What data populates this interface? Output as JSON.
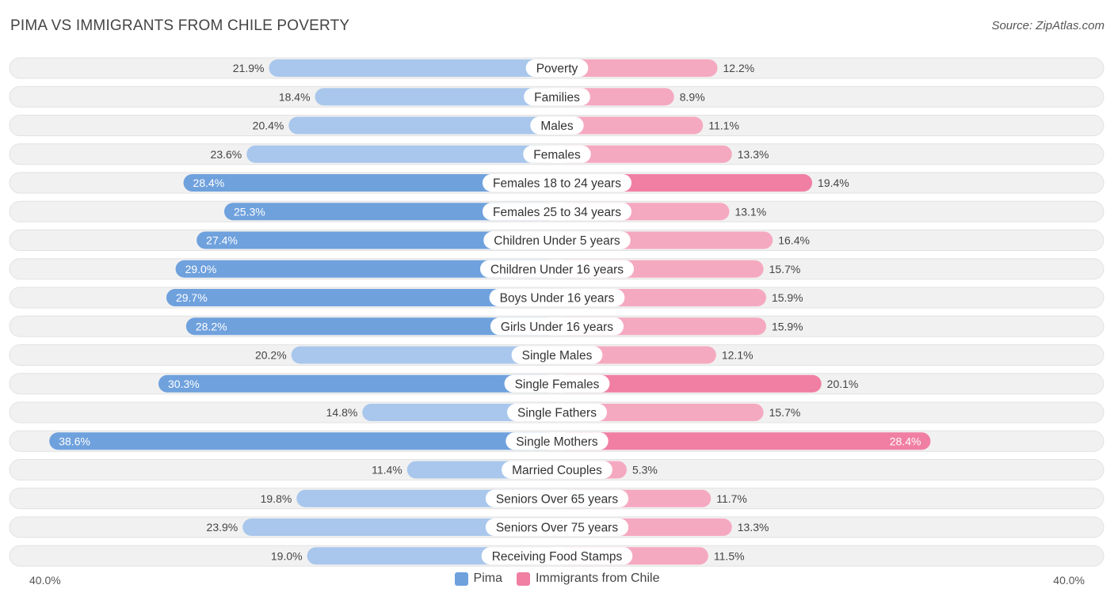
{
  "header": {
    "title": "PIMA VS IMMIGRANTS FROM CHILE POVERTY",
    "source": "Source: ZipAtlas.com"
  },
  "legend": {
    "left_label": "Pima",
    "right_label": "Immigrants from Chile"
  },
  "axis": {
    "left_label": "40.0%",
    "right_label": "40.0%"
  },
  "colors": {
    "pima": "#6fa1dd",
    "pima_light": "#a9c7ec",
    "chile": "#f07fa3",
    "chile_light": "#f5a9c0",
    "row_bg": "#f1f1f1"
  },
  "chart_data": {
    "type": "bar",
    "orientation": "horizontal-diverging",
    "title": "PIMA VS IMMIGRANTS FROM CHILE POVERTY",
    "xlim": [
      0,
      40
    ],
    "unit": "%",
    "categories": [
      "Poverty",
      "Families",
      "Males",
      "Females",
      "Females 18 to 24 years",
      "Females 25 to 34 years",
      "Children Under 5 years",
      "Children Under 16 years",
      "Boys Under 16 years",
      "Girls Under 16 years",
      "Single Males",
      "Single Females",
      "Single Fathers",
      "Single Mothers",
      "Married Couples",
      "Seniors Over 65 years",
      "Seniors Over 75 years",
      "Receiving Food Stamps"
    ],
    "series": [
      {
        "name": "Pima",
        "values": [
          21.9,
          18.4,
          20.4,
          23.6,
          28.4,
          25.3,
          27.4,
          29.0,
          29.7,
          28.2,
          20.2,
          30.3,
          14.8,
          38.6,
          11.4,
          19.8,
          23.9,
          19.0
        ],
        "labels": [
          "21.9%",
          "18.4%",
          "20.4%",
          "23.6%",
          "28.4%",
          "25.3%",
          "27.4%",
          "29.0%",
          "29.7%",
          "28.2%",
          "20.2%",
          "30.3%",
          "14.8%",
          "38.6%",
          "11.4%",
          "19.8%",
          "23.9%",
          "19.0%"
        ]
      },
      {
        "name": "Immigrants from Chile",
        "values": [
          12.2,
          8.9,
          11.1,
          13.3,
          19.4,
          13.1,
          16.4,
          15.7,
          15.9,
          15.9,
          12.1,
          20.1,
          15.7,
          28.4,
          5.3,
          11.7,
          13.3,
          11.5
        ],
        "labels": [
          "12.2%",
          "8.9%",
          "11.1%",
          "13.3%",
          "19.4%",
          "13.1%",
          "16.4%",
          "15.7%",
          "15.9%",
          "15.9%",
          "12.1%",
          "20.1%",
          "15.7%",
          "28.4%",
          "5.3%",
          "11.7%",
          "13.3%",
          "11.5%"
        ]
      }
    ]
  }
}
